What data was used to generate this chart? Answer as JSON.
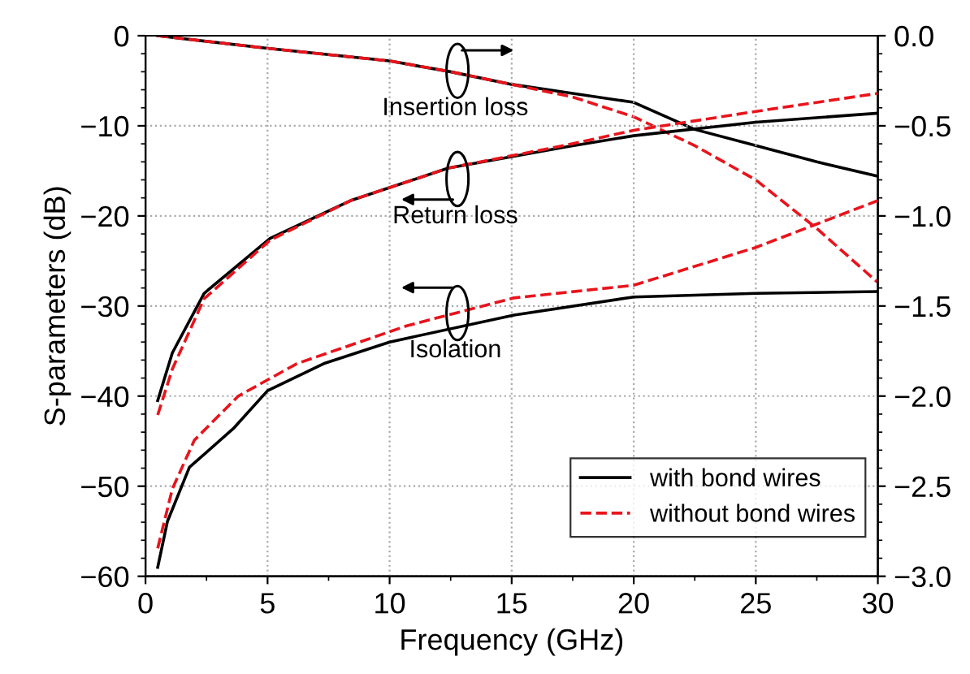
{
  "chart_data": {
    "type": "line",
    "xlabel": "Frequency (GHz)",
    "ylabel": "S-parameters (dB)",
    "xlim": [
      0,
      30
    ],
    "xticks": [
      0,
      5,
      10,
      15,
      20,
      25,
      30
    ],
    "ylim": [
      -60,
      0
    ],
    "yticks": [
      -60,
      -50,
      -40,
      -30,
      -20,
      -10,
      0
    ],
    "y2lim": [
      -3.0,
      0.0
    ],
    "y2ticks": [
      {
        "value": -3.0,
        "label": "−3.0"
      },
      {
        "value": -2.5,
        "label": "−2.5"
      },
      {
        "value": -2.0,
        "label": "−2.0"
      },
      {
        "value": -1.5,
        "label": "−1.5"
      },
      {
        "value": -1.0,
        "label": "−1.0"
      },
      {
        "value": -0.5,
        "label": "−0.5"
      },
      {
        "value": 0.0,
        "label": "0.0"
      }
    ],
    "grid": true,
    "legend": "bottom right",
    "marker": "none",
    "series": [
      {
        "name": "with bond wires",
        "color": "#000000",
        "line_style": "solid",
        "axis": "y2",
        "x": [
          0.5,
          5,
          10,
          12.5,
          15,
          17.5,
          20,
          22.5,
          25,
          27.5,
          30
        ],
        "values": [
          0.0,
          -0.07,
          -0.14,
          -0.2,
          -0.27,
          -0.32,
          -0.37,
          -0.52,
          -0.61,
          -0.7,
          -0.78
        ]
      },
      {
        "color": "#e8141c",
        "line_style": "dashed",
        "axis": "y2",
        "x": [
          0.5,
          5,
          10,
          12.5,
          15,
          17.5,
          20,
          22.5,
          25,
          27.5,
          30
        ],
        "values": [
          0.0,
          -0.07,
          -0.14,
          -0.2,
          -0.27,
          -0.34,
          -0.45,
          -0.61,
          -0.8,
          -1.07,
          -1.37
        ]
      },
      {
        "color": "#000000",
        "line_style": "solid",
        "x": [
          0.5,
          1.1,
          2.4,
          5.1,
          8.4,
          12.4,
          17.3,
          20,
          25,
          30
        ],
        "values": [
          -40.5,
          -35.2,
          -28.6,
          -22.5,
          -18.3,
          -14.7,
          -12.3,
          -11.1,
          -9.6,
          -8.6
        ]
      },
      {
        "color": "#e8141c",
        "line_style": "dashed",
        "x": [
          0.5,
          1.1,
          2.4,
          5.1,
          8.4,
          12.4,
          17.3,
          20,
          25,
          30
        ],
        "values": [
          -42.1,
          -37,
          -29.2,
          -22.7,
          -18.3,
          -14.7,
          -12.1,
          -10.5,
          -8.4,
          -6.4
        ]
      },
      {
        "color": "#000000",
        "line_style": "solid",
        "x": [
          0.5,
          0.9,
          1.8,
          3.6,
          5,
          7.3,
          10,
          15.1,
          20,
          25,
          30
        ],
        "values": [
          -59,
          -53.9,
          -47.9,
          -43.6,
          -39.4,
          -36.4,
          -34.0,
          -31.0,
          -29.0,
          -28.6,
          -28.4
        ]
      },
      {
        "name": "without bond wires",
        "color": "#e8141c",
        "line_style": "dashed",
        "x": [
          0.5,
          1.1,
          2.0,
          3.8,
          6.2,
          10.7,
          15.1,
          20,
          25,
          30
        ],
        "values": [
          -56.9,
          -50.3,
          -44.9,
          -40.0,
          -36.4,
          -32.2,
          -29.1,
          -27.7,
          -23.5,
          -18.3
        ]
      }
    ],
    "annotations": [
      "Insertion loss",
      "Return loss",
      "Isolation"
    ]
  }
}
